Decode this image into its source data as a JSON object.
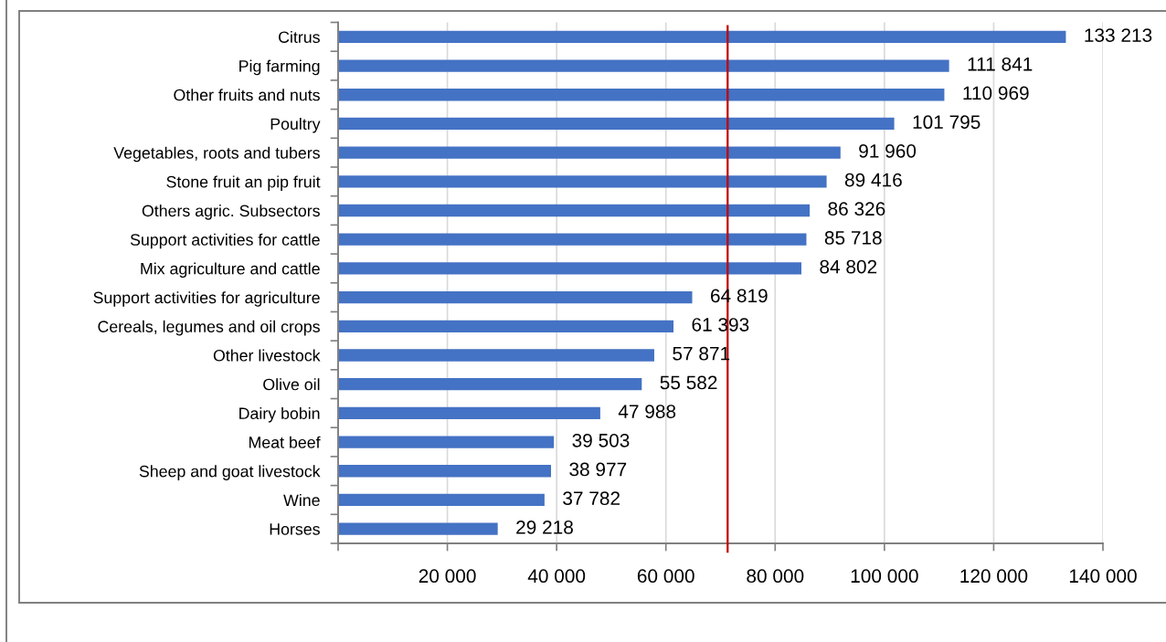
{
  "chart_data": {
    "type": "bar",
    "orientation": "horizontal",
    "categories": [
      "Citrus",
      "Pig farming",
      "Other fruits and nuts",
      "Poultry",
      "Vegetables, roots and tubers",
      "Stone fruit an pip fruit",
      "Others agric. Subsectors",
      "Support activities for cattle",
      "Mix agriculture and cattle",
      "Support activities for agriculture",
      "Cereals, legumes and oil crops",
      "Other livestock",
      "Olive oil",
      "Dairy bobin",
      "Meat beef",
      "Sheep and goat livestock",
      "Wine",
      "Horses"
    ],
    "values": [
      133213,
      111841,
      110969,
      101795,
      91960,
      89416,
      86326,
      85718,
      84802,
      64819,
      61393,
      57871,
      55582,
      47988,
      39503,
      38977,
      37782,
      29218
    ],
    "value_labels": [
      "133 213",
      "111 841",
      "110 969",
      "101 795",
      "91 960",
      "89 416",
      "86 326",
      "85 718",
      "84 802",
      "64 819",
      "61 393",
      "57 871",
      "55 582",
      "47 988",
      "39 503",
      "38 977",
      "37 782",
      "29 218"
    ],
    "color": "#4472c4",
    "xlim": [
      0,
      140000
    ],
    "xticks": [
      {
        "value": 0,
        "label": null
      },
      {
        "value": 20000,
        "label": "20 000"
      },
      {
        "value": 40000,
        "label": "40 000"
      },
      {
        "value": 60000,
        "label": "60 000"
      },
      {
        "value": 80000,
        "label": "80 000"
      },
      {
        "value": 100000,
        "label": "100 000"
      },
      {
        "value": 120000,
        "label": "120 000"
      },
      {
        "value": 140000,
        "label": "140 000"
      }
    ],
    "grid": "x",
    "ref_lines": [
      {
        "axis": "x",
        "value": 71300,
        "color": "#c00000"
      }
    ]
  }
}
